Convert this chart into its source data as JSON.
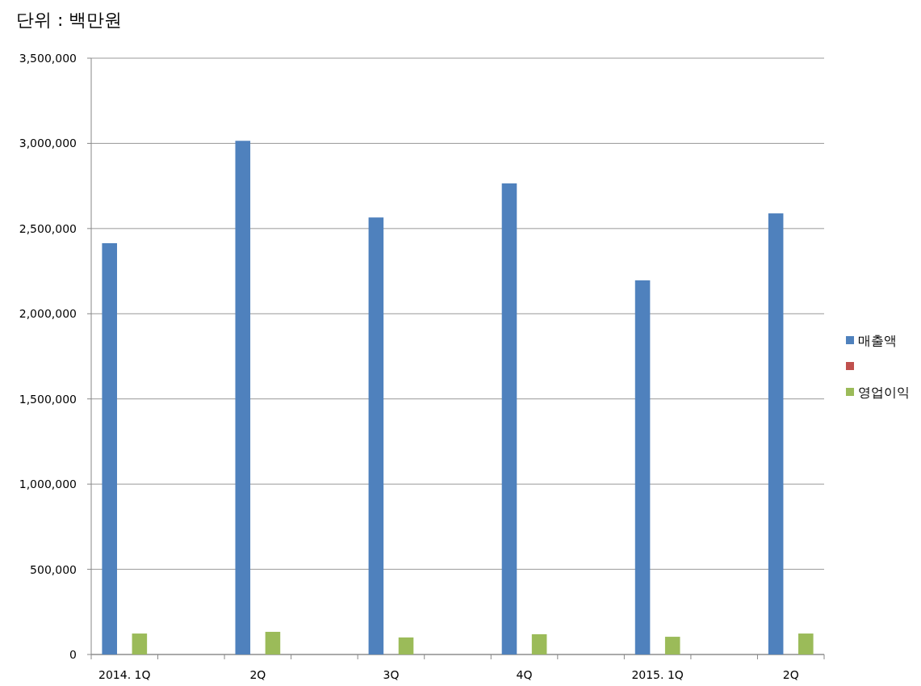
{
  "chart_data": {
    "type": "bar",
    "title": "단위 : 백만원",
    "categories": [
      "2014. 1Q",
      null,
      "2Q",
      null,
      "3Q",
      null,
      "4Q",
      null,
      "2015. 1Q",
      null,
      "2Q"
    ],
    "series": [
      {
        "name": "매출액",
        "color": "#4f81bd",
        "values": [
          2414000,
          null,
          3015000,
          null,
          2565000,
          null,
          2765000,
          null,
          2196000,
          null,
          2589000
        ]
      },
      {
        "color": "#c0504d",
        "values": [
          null,
          null,
          null,
          null,
          null,
          null,
          null,
          null,
          null,
          null,
          null
        ]
      },
      {
        "name": "영업이익",
        "color": "#9bbb59",
        "values": [
          123000,
          null,
          133000,
          null,
          100000,
          null,
          119000,
          null,
          104000,
          null,
          123000
        ]
      }
    ],
    "ylim": [
      0,
      3500000
    ],
    "yticks": [
      0,
      {
        "value": 500000,
        "label": "500,000"
      },
      {
        "value": 1000000,
        "label": "1,000,000"
      },
      {
        "value": 1500000,
        "label": "1,500,000"
      },
      {
        "value": 2000000,
        "label": "2,000,000"
      },
      {
        "value": 2500000,
        "label": "2,500,000"
      },
      {
        "value": 3000000,
        "label": "3,000,000"
      },
      {
        "value": 3500000,
        "label": "3,500,000"
      }
    ],
    "grid": "y",
    "legend": "right"
  }
}
